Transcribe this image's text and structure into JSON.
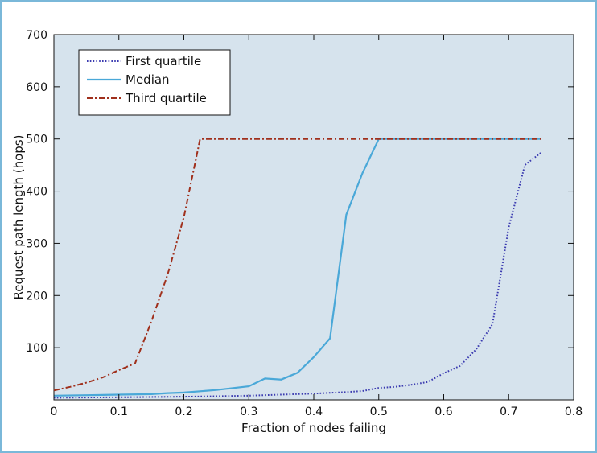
{
  "chart_data": {
    "type": "line",
    "xlabel": "Fraction of nodes failing",
    "ylabel": "Request path length (hops)",
    "xlim": [
      0,
      0.8
    ],
    "ylim": [
      0,
      700
    ],
    "x_ticks": [
      "0",
      "0.1",
      "0.2",
      "0.3",
      "0.4",
      "0.5",
      "0.6",
      "0.7",
      "0.8"
    ],
    "y_ticks": [
      "100",
      "200",
      "300",
      "400",
      "500",
      "600",
      "700"
    ],
    "grid": false,
    "legend_position": "top-left",
    "background_color": "#d6e3ed",
    "series": [
      {
        "name": "First quartile",
        "color": "#3b3bb0",
        "style": "dotted",
        "x": [
          0,
          0.1,
          0.2,
          0.25,
          0.3,
          0.35,
          0.4,
          0.45,
          0.475,
          0.5,
          0.525,
          0.55,
          0.575,
          0.6,
          0.625,
          0.65,
          0.675,
          0.7,
          0.725,
          0.75
        ],
        "y": [
          4,
          5,
          6,
          7,
          8,
          10,
          12,
          15,
          17,
          23,
          25,
          29,
          34,
          51,
          65,
          97,
          145,
          330,
          450,
          474
        ]
      },
      {
        "name": "Median",
        "color": "#4aa8d8",
        "style": "solid",
        "x": [
          0,
          0.05,
          0.1,
          0.15,
          0.175,
          0.2,
          0.25,
          0.3,
          0.325,
          0.35,
          0.375,
          0.4,
          0.425,
          0.45,
          0.475,
          0.5,
          0.55,
          0.6,
          0.65,
          0.7,
          0.75
        ],
        "y": [
          8,
          9,
          10,
          11,
          13,
          14,
          19,
          26,
          41,
          39,
          52,
          82,
          118,
          355,
          435,
          500,
          500,
          500,
          500,
          500,
          500
        ]
      },
      {
        "name": "Third quartile",
        "color": "#a0301c",
        "style": "dashdot",
        "x": [
          0,
          0.025,
          0.05,
          0.075,
          0.1,
          0.125,
          0.15,
          0.175,
          0.2,
          0.225,
          0.25,
          0.3,
          0.4,
          0.5,
          0.6,
          0.7,
          0.75
        ],
        "y": [
          18,
          25,
          33,
          43,
          57,
          70,
          150,
          240,
          350,
          500,
          500,
          500,
          500,
          500,
          500,
          500,
          500
        ]
      }
    ]
  }
}
